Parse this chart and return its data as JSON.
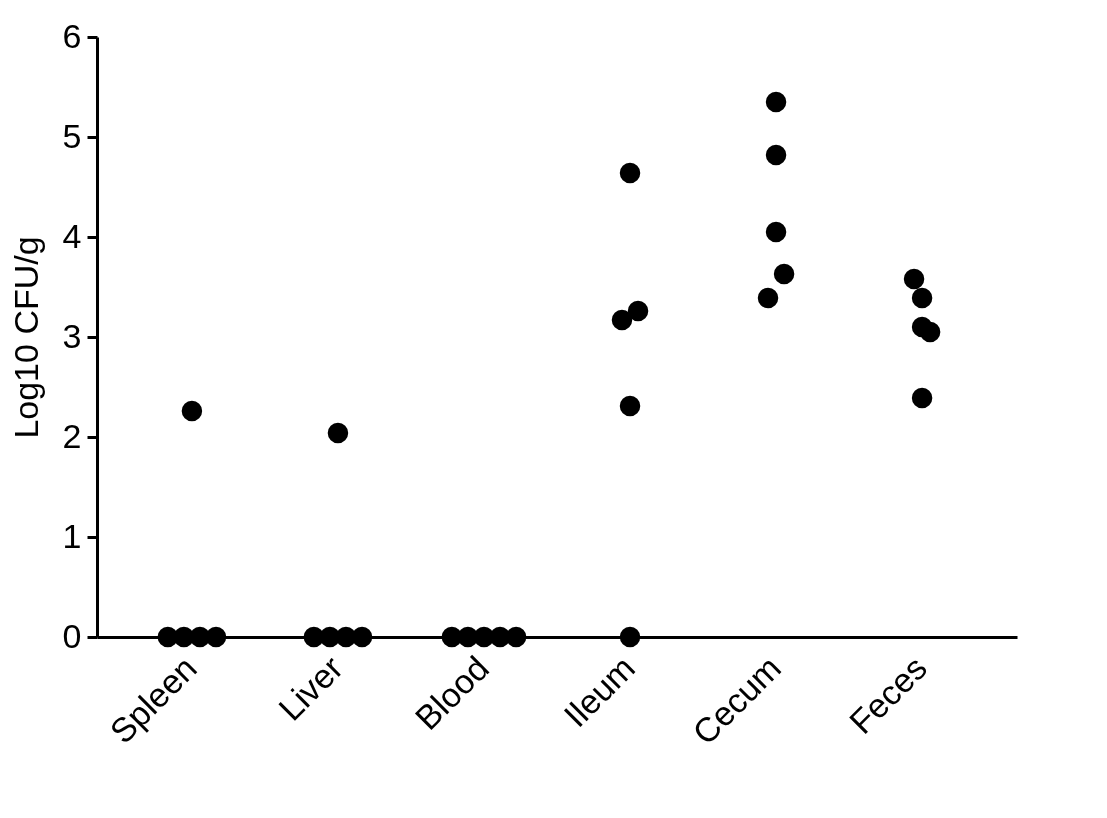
{
  "chart_data": {
    "type": "scatter",
    "ylabel": "Log10 CFU/g",
    "categories": [
      "Spleen",
      "Liver",
      "Blood",
      "Ileum",
      "Cecum",
      "Feces"
    ],
    "series": [
      {
        "color": "#000000",
        "x": [
          "Spleen",
          "Spleen",
          "Spleen",
          "Spleen",
          "Spleen",
          "Liver",
          "Liver",
          "Liver",
          "Liver",
          "Liver",
          "Blood",
          "Blood",
          "Blood",
          "Blood",
          "Blood",
          "Ileum",
          "Ileum",
          "Ileum",
          "Ileum",
          "Ileum",
          "Cecum",
          "Cecum",
          "Cecum",
          "Cecum",
          "Cecum",
          "Feces",
          "Feces",
          "Feces",
          "Feces",
          "Feces"
        ],
        "values": [
          2.26,
          0,
          0,
          0,
          0,
          2.04,
          0,
          0,
          0,
          0,
          0,
          0,
          0,
          0,
          0,
          4.64,
          3.17,
          3.26,
          2.31,
          0,
          5.35,
          4.82,
          4.05,
          3.39,
          3.63,
          3.58,
          3.39,
          3.1,
          3.05,
          2.39
        ]
      }
    ],
    "ylim": [
      0,
      6
    ],
    "yticks": [
      0,
      1,
      2,
      3,
      4,
      5,
      6
    ],
    "marker": "circle",
    "grid": false
  }
}
